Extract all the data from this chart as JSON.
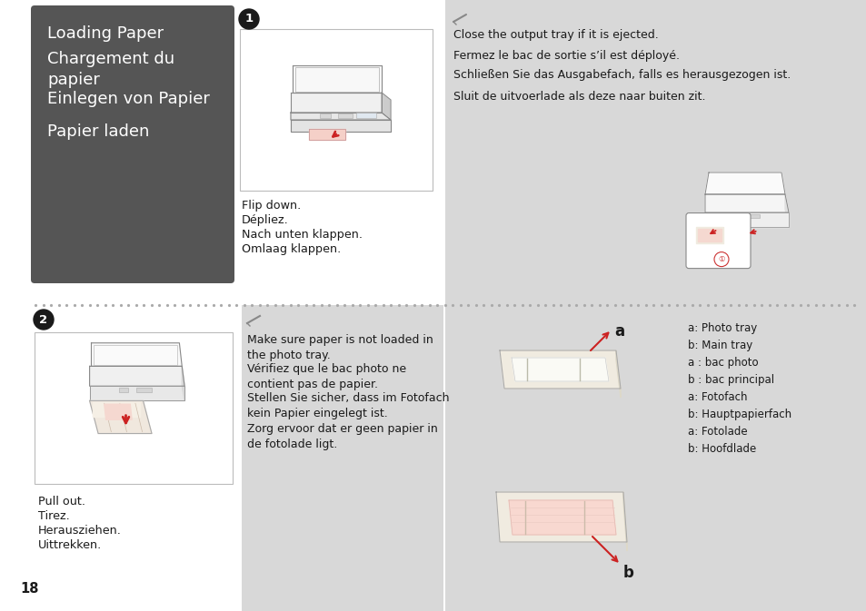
{
  "bg_white": "#ffffff",
  "bg_gray": "#d8d8d8",
  "dark_panel": "#555555",
  "text_dark": "#1a1a1a",
  "text_white": "#ffffff",
  "text_gray": "#888888",
  "red": "#cc2222",
  "dot_color": "#aaaaaa",
  "page_number": "18",
  "titles": [
    "Loading Paper",
    "Chargement du\npapier",
    "Einlegen von Papier",
    "Papier laden"
  ],
  "step1_captions": [
    "Flip down.",
    "Dépliez.",
    "Nach unten klappen.",
    "Omlaag klappen."
  ],
  "step2_captions": [
    "Pull out.",
    "Tirez.",
    "Herausziehen.",
    "Uittrekken."
  ],
  "note1": [
    "Close the output tray if it is ejected.",
    "Fermez le bac de sortie s’il est déployé.",
    "Schließen Sie das Ausgabefach, falls es herausgezogen ist.",
    "Sluit de uitvoerlade als deze naar buiten zit."
  ],
  "note2": [
    "Make sure paper is not loaded in\nthe photo tray.",
    "Vérifiez que le bac photo ne\ncontient pas de papier.",
    "Stellen Sie sicher, dass im Fotofach\nkein Papier eingelegt ist.",
    "Zorg ervoor dat er geen papier in\nde fotolade ligt."
  ],
  "labels": [
    "a: Photo tray",
    "b: Main tray",
    "a : bac photo",
    "b : bac principal",
    "a: Fotofach",
    "b: Hauptpapierfach",
    "a: Fotolade",
    "b: Hoofdlade"
  ]
}
